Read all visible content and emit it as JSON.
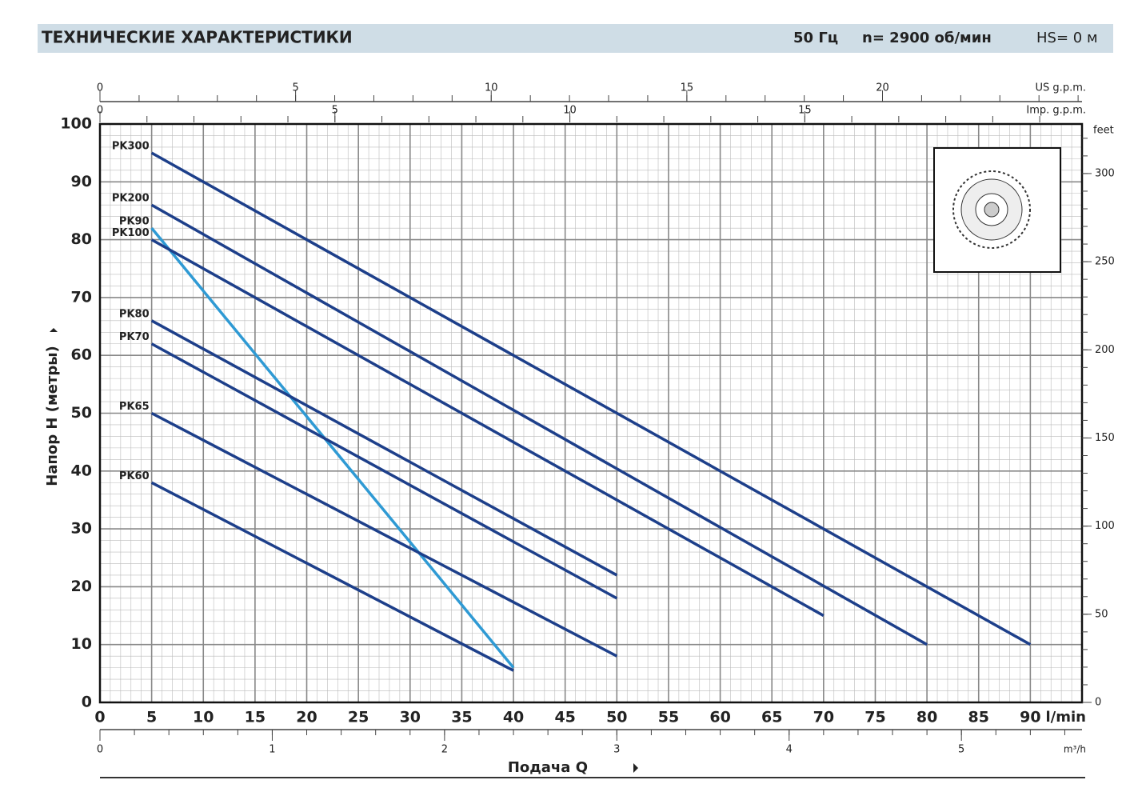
{
  "header": {
    "title": "ТЕХНИЧЕСКИЕ ХАРАКТЕРИСТИКИ",
    "frequency": "50 Гц",
    "speed": "n= 2900 об/мин",
    "suction": "HS= 0 м"
  },
  "chart_data": {
    "type": "line",
    "y_label": "Напор H (метры)",
    "x_label": "Подача Q",
    "x_unit": "l/min",
    "xlim": [
      0,
      95
    ],
    "xticks": [
      0,
      5,
      10,
      15,
      20,
      25,
      30,
      35,
      40,
      45,
      50,
      55,
      60,
      65,
      70,
      75,
      80,
      85,
      90
    ],
    "ylim": [
      0,
      100
    ],
    "yticks": [
      0,
      10,
      20,
      30,
      40,
      50,
      60,
      70,
      80,
      90,
      100
    ],
    "grid": true,
    "secondary_axes": [
      {
        "side": "top",
        "unit": "US g.p.m.",
        "lim": [
          0,
          25.1
        ],
        "ticks": [
          0,
          5,
          10,
          15,
          20
        ]
      },
      {
        "side": "top",
        "unit": "Imp. g.p.m.",
        "lim": [
          0,
          20.9
        ],
        "ticks": [
          0,
          5,
          10,
          15
        ]
      },
      {
        "side": "right",
        "unit": "feet",
        "lim": [
          0,
          328.1
        ],
        "ticks": [
          0,
          50,
          100,
          150,
          200,
          250,
          300
        ]
      },
      {
        "side": "bottom",
        "unit": "m³/h",
        "lim": [
          0,
          5.7
        ],
        "ticks": [
          0,
          1,
          2,
          3,
          4,
          5
        ]
      }
    ],
    "series": [
      {
        "name": "PK300",
        "color": "#1d3f8a",
        "x": [
          5,
          90
        ],
        "values": [
          95,
          10
        ]
      },
      {
        "name": "PK200",
        "color": "#1d3f8a",
        "x": [
          5,
          80
        ],
        "values": [
          86,
          10
        ]
      },
      {
        "name": "PK90",
        "color": "#2f9ad4",
        "x": [
          5,
          40
        ],
        "values": [
          82,
          6
        ]
      },
      {
        "name": "PK100",
        "color": "#1d3f8a",
        "x": [
          5,
          70
        ],
        "values": [
          80,
          15
        ]
      },
      {
        "name": "PK80",
        "color": "#1d3f8a",
        "x": [
          5,
          50
        ],
        "values": [
          66,
          22
        ]
      },
      {
        "name": "PK70",
        "color": "#1d3f8a",
        "x": [
          5,
          50
        ],
        "values": [
          62,
          18
        ]
      },
      {
        "name": "PK65",
        "color": "#1d3f8a",
        "x": [
          5,
          50
        ],
        "values": [
          50,
          8
        ]
      },
      {
        "name": "PK60",
        "color": "#1d3f8a",
        "x": [
          5,
          40
        ],
        "values": [
          38,
          5.5
        ]
      }
    ]
  }
}
